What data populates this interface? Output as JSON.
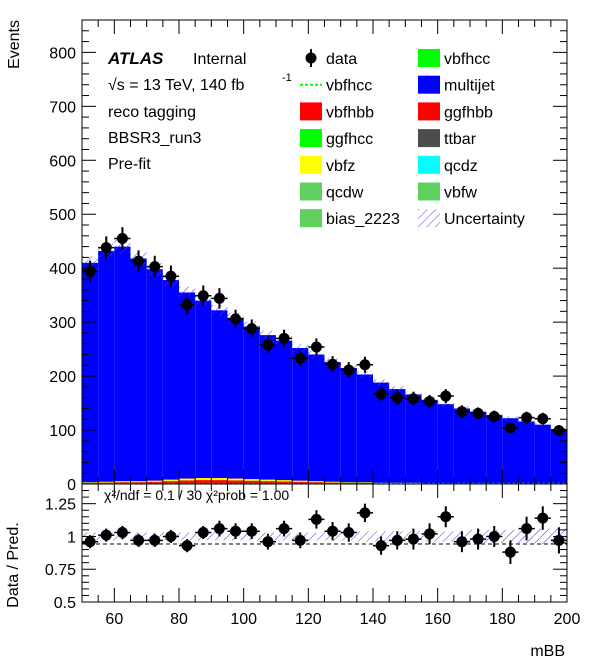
{
  "chart_data": [
    {
      "type": "bar",
      "panel": "main",
      "ylabel": "Events",
      "xlim": [
        50,
        200
      ],
      "ylim": [
        0,
        860
      ],
      "yticks": [
        0,
        100,
        200,
        300,
        400,
        500,
        600,
        700,
        800
      ],
      "bin_edges": [
        50,
        55,
        60,
        65,
        70,
        75,
        80,
        85,
        90,
        95,
        100,
        105,
        110,
        115,
        120,
        125,
        130,
        135,
        140,
        145,
        150,
        155,
        160,
        165,
        170,
        175,
        180,
        185,
        190,
        195,
        200
      ],
      "annotations": {
        "experiment": "ATLAS",
        "status": "Internal",
        "energy": "√s = 13 TeV, 140 fb",
        "lumi_exp": "-1",
        "line1": "reco tagging",
        "line2": "BBSR3_run3",
        "line3": "Pre-fit"
      },
      "legend": [
        {
          "label": "data",
          "type": "marker",
          "color": "#000000"
        },
        {
          "label": "vbfhcc",
          "type": "fill",
          "color": "#00ff00"
        },
        {
          "label": "vbfhcc",
          "type": "dashed",
          "color": "#00ff00"
        },
        {
          "label": "multijet",
          "type": "fill",
          "color": "#0000ff"
        },
        {
          "label": "vbfhbb",
          "type": "fill",
          "color": "#ff0000"
        },
        {
          "label": "ggfhbb",
          "type": "fill",
          "color": "#ff0000"
        },
        {
          "label": "ggfhcc",
          "type": "fill",
          "color": "#00ff00"
        },
        {
          "label": "ttbar",
          "type": "fill",
          "color": "#4d4d4d"
        },
        {
          "label": "vbfz",
          "type": "fill",
          "color": "#ffff00"
        },
        {
          "label": "qcdz",
          "type": "fill",
          "color": "#00ffff"
        },
        {
          "label": "qcdw",
          "type": "fill",
          "color": "#5fcf5f"
        },
        {
          "label": "vbfw",
          "type": "fill",
          "color": "#5fcf5f"
        },
        {
          "label": "bias_2223",
          "type": "fill",
          "color": "#5fcf5f"
        },
        {
          "label": "Uncertainty",
          "type": "hatch",
          "color": "#3f3fdf"
        }
      ],
      "multijet": [
        410,
        432,
        440,
        418,
        398,
        378,
        355,
        340,
        322,
        308,
        292,
        276,
        266,
        252,
        240,
        226,
        215,
        203,
        188,
        176,
        166,
        156,
        148,
        140,
        134,
        128,
        122,
        116,
        110,
        102
      ],
      "signal_small": [
        3,
        4,
        5,
        5,
        6,
        8,
        10,
        11,
        11,
        10,
        9,
        8,
        7,
        6,
        5,
        4,
        3,
        3,
        2,
        2,
        2,
        1,
        1,
        1,
        1,
        1,
        1,
        0,
        0,
        0
      ],
      "data": [
        394,
        438,
        455,
        413,
        403,
        385,
        332,
        349,
        344,
        306,
        288,
        258,
        270,
        233,
        254,
        222,
        211,
        221,
        167,
        160,
        158,
        153,
        163,
        134,
        131,
        125,
        104,
        123,
        121,
        99
      ],
      "data_err": [
        20,
        21,
        21,
        20,
        20,
        20,
        18,
        19,
        19,
        17,
        17,
        16,
        16,
        15,
        16,
        15,
        15,
        15,
        13,
        13,
        13,
        12,
        13,
        12,
        11,
        11,
        10,
        11,
        11,
        10
      ]
    },
    {
      "type": "scatter",
      "panel": "ratio",
      "ylabel": "Data / Pred.",
      "xlabel": "mBB",
      "xlim": [
        50,
        200
      ],
      "ylim": [
        0.5,
        1.4
      ],
      "yticks": [
        0.5,
        0.75,
        1,
        1.25
      ],
      "yticklabels": [
        "0.5",
        "0.75",
        "1",
        "1.25"
      ],
      "xticks": [
        60,
        80,
        100,
        120,
        140,
        160,
        180,
        200
      ],
      "x": [
        52.5,
        57.5,
        62.5,
        67.5,
        72.5,
        77.5,
        82.5,
        87.5,
        92.5,
        97.5,
        102.5,
        107.5,
        112.5,
        117.5,
        122.5,
        127.5,
        132.5,
        137.5,
        142.5,
        147.5,
        152.5,
        157.5,
        162.5,
        167.5,
        172.5,
        177.5,
        182.5,
        187.5,
        192.5,
        197.5
      ],
      "ratio": [
        0.96,
        1.01,
        1.03,
        0.97,
        0.97,
        1.0,
        0.93,
        1.03,
        1.06,
        1.04,
        1.04,
        0.96,
        1.06,
        0.97,
        1.13,
        1.04,
        1.03,
        1.18,
        0.93,
        0.97,
        0.98,
        1.02,
        1.15,
        0.96,
        0.98,
        1.0,
        0.88,
        1.06,
        1.14,
        0.97
      ],
      "ratio_err": [
        0.05,
        0.05,
        0.05,
        0.05,
        0.05,
        0.05,
        0.05,
        0.05,
        0.06,
        0.06,
        0.06,
        0.06,
        0.06,
        0.06,
        0.07,
        0.07,
        0.07,
        0.07,
        0.07,
        0.07,
        0.08,
        0.08,
        0.08,
        0.08,
        0.08,
        0.08,
        0.09,
        0.09,
        0.09,
        0.1
      ],
      "unc_band": [
        0.03,
        0.03,
        0.03,
        0.03,
        0.03,
        0.03,
        0.03,
        0.03,
        0.03,
        0.03,
        0.03,
        0.03,
        0.03,
        0.03,
        0.03,
        0.03,
        0.03,
        0.04,
        0.04,
        0.04,
        0.04,
        0.04,
        0.04,
        0.04,
        0.05,
        0.05,
        0.05,
        0.05,
        0.06,
        0.06
      ],
      "stat_text": "χ²/ndf = 0.1 / 30   χ²prob = 1.00"
    }
  ]
}
